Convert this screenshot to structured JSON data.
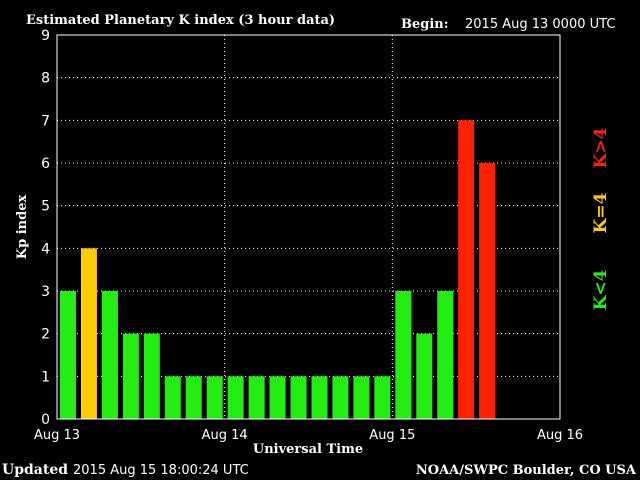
{
  "chart_data": {
    "type": "bar",
    "title": "Estimated Planetary K index (3 hour data)",
    "begin_label": "Begin:",
    "begin_value": "2015 Aug 13 0000 UTC",
    "ylabel": "Kp index",
    "xlabel": "Universal Time",
    "ylim": [
      0,
      9
    ],
    "y_ticks": [
      "0",
      "1",
      "2",
      "3",
      "4",
      "5",
      "6",
      "7",
      "8",
      "9"
    ],
    "x_ticks": [
      "Aug 13",
      "Aug 14",
      "Aug 15",
      "Aug 16"
    ],
    "interval_hours": 3,
    "total_intervals": 24,
    "grid": true,
    "values": [
      3,
      4,
      3,
      2,
      2,
      1,
      1,
      1,
      1,
      1,
      1,
      1,
      1,
      1,
      1,
      1,
      3,
      2,
      3,
      7,
      6
    ],
    "legend": [
      {
        "label": "K<4",
        "color": "#22ee11"
      },
      {
        "label": "K=4",
        "color": "#ffcc00"
      },
      {
        "label": "K>4",
        "color": "#ff2200"
      }
    ],
    "colors": {
      "below": "#22ee11",
      "equal": "#ffcc00",
      "above": "#ff2200",
      "frame": "#ffffff",
      "background": "#000000"
    }
  },
  "footer": {
    "updated_label": "Updated",
    "updated_value": "2015 Aug 15 18:00:24 UTC",
    "source": "NOAA/SWPC Boulder, CO USA"
  }
}
